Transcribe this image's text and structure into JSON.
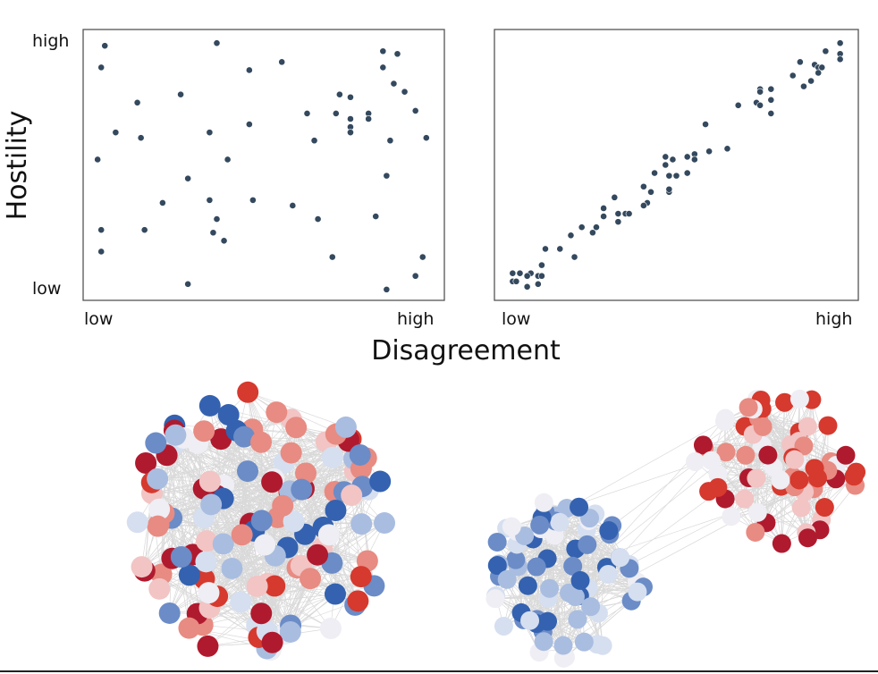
{
  "chart_data": [
    {
      "type": "scatter",
      "title": "",
      "ylabel": "Hostility",
      "xlabel": "Disagreement",
      "x_tick_labels": [
        "low",
        "high"
      ],
      "y_tick_labels": [
        "low",
        "high"
      ],
      "xlim": [
        0,
        1
      ],
      "ylim": [
        0,
        1
      ],
      "grid": false,
      "color": "#34495e",
      "points": [
        [
          0.06,
          0.94
        ],
        [
          0.37,
          0.95
        ],
        [
          0.83,
          0.92
        ],
        [
          0.87,
          0.91
        ],
        [
          0.05,
          0.86
        ],
        [
          0.46,
          0.85
        ],
        [
          0.55,
          0.88
        ],
        [
          0.83,
          0.86
        ],
        [
          0.86,
          0.8
        ],
        [
          0.89,
          0.77
        ],
        [
          0.27,
          0.76
        ],
        [
          0.15,
          0.73
        ],
        [
          0.71,
          0.76
        ],
        [
          0.74,
          0.75
        ],
        [
          0.92,
          0.7
        ],
        [
          0.62,
          0.69
        ],
        [
          0.7,
          0.69
        ],
        [
          0.79,
          0.69
        ],
        [
          0.79,
          0.67
        ],
        [
          0.74,
          0.67
        ],
        [
          0.46,
          0.65
        ],
        [
          0.74,
          0.64
        ],
        [
          0.74,
          0.62
        ],
        [
          0.09,
          0.62
        ],
        [
          0.16,
          0.6
        ],
        [
          0.35,
          0.62
        ],
        [
          0.64,
          0.59
        ],
        [
          0.85,
          0.59
        ],
        [
          0.95,
          0.6
        ],
        [
          0.04,
          0.52
        ],
        [
          0.4,
          0.52
        ],
        [
          0.84,
          0.46
        ],
        [
          0.29,
          0.45
        ],
        [
          0.22,
          0.36
        ],
        [
          0.35,
          0.37
        ],
        [
          0.47,
          0.37
        ],
        [
          0.58,
          0.35
        ],
        [
          0.37,
          0.3
        ],
        [
          0.65,
          0.3
        ],
        [
          0.81,
          0.31
        ],
        [
          0.05,
          0.26
        ],
        [
          0.17,
          0.26
        ],
        [
          0.36,
          0.25
        ],
        [
          0.39,
          0.22
        ],
        [
          0.05,
          0.18
        ],
        [
          0.69,
          0.16
        ],
        [
          0.94,
          0.16
        ],
        [
          0.92,
          0.09
        ],
        [
          0.29,
          0.06
        ],
        [
          0.84,
          0.04
        ]
      ]
    },
    {
      "type": "scatter",
      "title": "",
      "ylabel": "Hostility",
      "xlabel": "Disagreement",
      "x_tick_labels": [
        "low",
        "high"
      ],
      "xlim": [
        0,
        1
      ],
      "ylim": [
        0,
        1
      ],
      "grid": false,
      "color": "#34495e",
      "points": [
        [
          0.95,
          0.95
        ],
        [
          0.91,
          0.92
        ],
        [
          0.95,
          0.91
        ],
        [
          0.95,
          0.89
        ],
        [
          0.84,
          0.88
        ],
        [
          0.88,
          0.87
        ],
        [
          0.89,
          0.86
        ],
        [
          0.9,
          0.86
        ],
        [
          0.89,
          0.84
        ],
        [
          0.82,
          0.83
        ],
        [
          0.87,
          0.81
        ],
        [
          0.85,
          0.79
        ],
        [
          0.73,
          0.78
        ],
        [
          0.73,
          0.77
        ],
        [
          0.76,
          0.78
        ],
        [
          0.76,
          0.74
        ],
        [
          0.72,
          0.73
        ],
        [
          0.73,
          0.72
        ],
        [
          0.67,
          0.72
        ],
        [
          0.76,
          0.69
        ],
        [
          0.58,
          0.65
        ],
        [
          0.64,
          0.56
        ],
        [
          0.59,
          0.55
        ],
        [
          0.55,
          0.54
        ],
        [
          0.53,
          0.53
        ],
        [
          0.47,
          0.53
        ],
        [
          0.49,
          0.52
        ],
        [
          0.55,
          0.52
        ],
        [
          0.47,
          0.5
        ],
        [
          0.44,
          0.47
        ],
        [
          0.53,
          0.47
        ],
        [
          0.48,
          0.46
        ],
        [
          0.5,
          0.46
        ],
        [
          0.41,
          0.42
        ],
        [
          0.43,
          0.4
        ],
        [
          0.48,
          0.4
        ],
        [
          0.48,
          0.41
        ],
        [
          0.33,
          0.38
        ],
        [
          0.42,
          0.36
        ],
        [
          0.41,
          0.35
        ],
        [
          0.3,
          0.34
        ],
        [
          0.34,
          0.32
        ],
        [
          0.36,
          0.32
        ],
        [
          0.37,
          0.32
        ],
        [
          0.3,
          0.31
        ],
        [
          0.34,
          0.29
        ],
        [
          0.24,
          0.27
        ],
        [
          0.28,
          0.27
        ],
        [
          0.27,
          0.25
        ],
        [
          0.21,
          0.24
        ],
        [
          0.14,
          0.19
        ],
        [
          0.18,
          0.19
        ],
        [
          0.22,
          0.16
        ],
        [
          0.13,
          0.13
        ],
        [
          0.05,
          0.1
        ],
        [
          0.07,
          0.1
        ],
        [
          0.1,
          0.1
        ],
        [
          0.12,
          0.09
        ],
        [
          0.13,
          0.09
        ],
        [
          0.09,
          0.09
        ],
        [
          0.05,
          0.07
        ],
        [
          0.06,
          0.07
        ],
        [
          0.12,
          0.06
        ],
        [
          0.09,
          0.05
        ]
      ]
    }
  ],
  "axes": {
    "ylabel": "Hostility",
    "xlabel": "Disagreement",
    "left_y_high": "high",
    "left_y_low": "low",
    "left_x_low": "low",
    "left_x_high": "high",
    "right_x_low": "low",
    "right_x_high": "high"
  },
  "networks": {
    "palette": [
      "#3462b0",
      "#6b8cc7",
      "#a9bde0",
      "#d5dff0",
      "#eeeef4",
      "#f2c4c4",
      "#e88b82",
      "#d6392e",
      "#b01a2e"
    ],
    "edge_color": "#d9d9d9",
    "mixed_cluster_nodes": 130,
    "blue_cluster_nodes": 75,
    "red_cluster_nodes": 70
  }
}
